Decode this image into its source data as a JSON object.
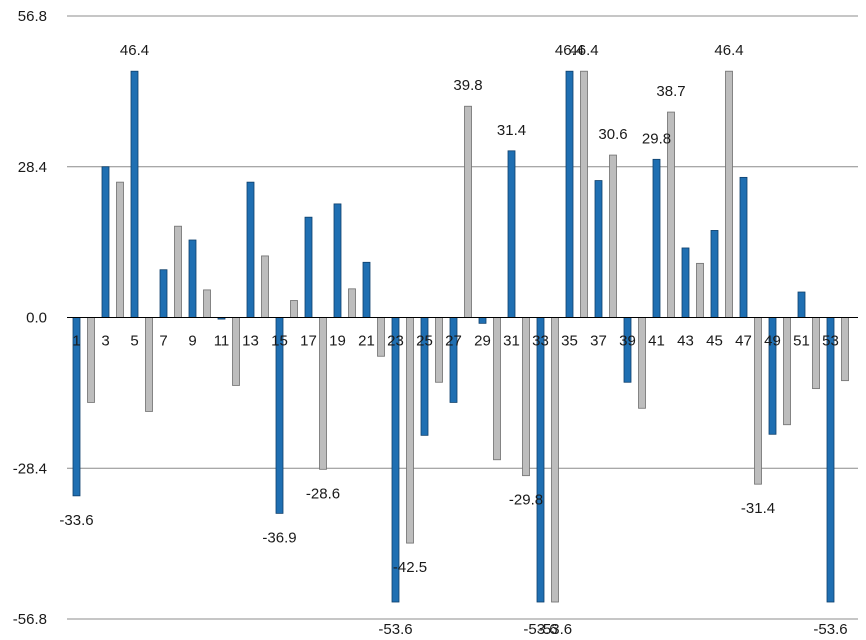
{
  "chart_data": {
    "type": "bar",
    "title": "",
    "xlabel": "",
    "ylabel": "",
    "ylim": [
      -56.8,
      56.8
    ],
    "y_ticks": [
      "56.8",
      "28.4",
      "0.0",
      "-28.4",
      "-56.8"
    ],
    "grid": true,
    "legend": "none",
    "colors": {
      "odd": "#1f6fb2",
      "even": "#bdbdbd",
      "odd_edge": "#0d3f6b",
      "even_edge": "#6e6e6e"
    },
    "categories": [
      "1",
      "2",
      "3",
      "4",
      "5",
      "6",
      "7",
      "8",
      "9",
      "10",
      "11",
      "12",
      "13",
      "14",
      "15",
      "16",
      "17",
      "18",
      "19",
      "20",
      "21",
      "22",
      "23",
      "24",
      "25",
      "26",
      "27",
      "28",
      "29",
      "30",
      "31",
      "32",
      "33",
      "34",
      "35",
      "36",
      "37",
      "38",
      "39",
      "40",
      "41",
      "42",
      "43",
      "44",
      "45",
      "46",
      "47",
      "48",
      "49",
      "50",
      "51",
      "52",
      "53",
      "54"
    ],
    "x_tick_labels": [
      "1",
      "3",
      "5",
      "7",
      "9",
      "11",
      "13",
      "15",
      "17",
      "19",
      "21",
      "23",
      "25",
      "27",
      "29",
      "31",
      "33",
      "35",
      "37",
      "39",
      "41",
      "43",
      "45",
      "47",
      "49",
      "51",
      "53"
    ],
    "values": [
      -33.6,
      -16,
      28.4,
      25.5,
      46.4,
      -17.7,
      9,
      17.2,
      14.6,
      5.2,
      -0.3,
      -12.8,
      25.5,
      11.6,
      -36.9,
      3.2,
      18.9,
      -28.6,
      21.4,
      5.4,
      10.4,
      -7.3,
      -53.6,
      -42.5,
      -22.2,
      -12.2,
      -16,
      39.8,
      -1.1,
      -26.8,
      31.4,
      -29.8,
      -53.6,
      -53.6,
      46.4,
      46.4,
      25.8,
      30.6,
      -12.2,
      -17.1,
      29.8,
      38.7,
      13.1,
      10.2,
      16.4,
      46.4,
      26.4,
      -31.4,
      -22,
      -20.2,
      4.8,
      -13.4,
      -53.6,
      -11.9
    ],
    "data_labels": [
      {
        "category": "1",
        "text": "-33.6"
      },
      {
        "category": "5",
        "text": "46.4"
      },
      {
        "category": "15",
        "text": "-36.9"
      },
      {
        "category": "18",
        "text": "-28.6"
      },
      {
        "category": "23",
        "text": "-53.6"
      },
      {
        "category": "24",
        "text": "-42.5"
      },
      {
        "category": "28",
        "text": "39.8"
      },
      {
        "category": "31",
        "text": "31.4"
      },
      {
        "category": "32",
        "text": "-29.8"
      },
      {
        "category": "33",
        "text": "-53.6"
      },
      {
        "category": "34",
        "text": "-53.6"
      },
      {
        "category": "35",
        "text": "46.4"
      },
      {
        "category": "36",
        "text": "46.4"
      },
      {
        "category": "38",
        "text": "30.6"
      },
      {
        "category": "41",
        "text": "29.8"
      },
      {
        "category": "42",
        "text": "38.7"
      },
      {
        "category": "46",
        "text": "46.4"
      },
      {
        "category": "48",
        "text": "-31.4"
      },
      {
        "category": "53",
        "text": "-53.6"
      }
    ]
  }
}
